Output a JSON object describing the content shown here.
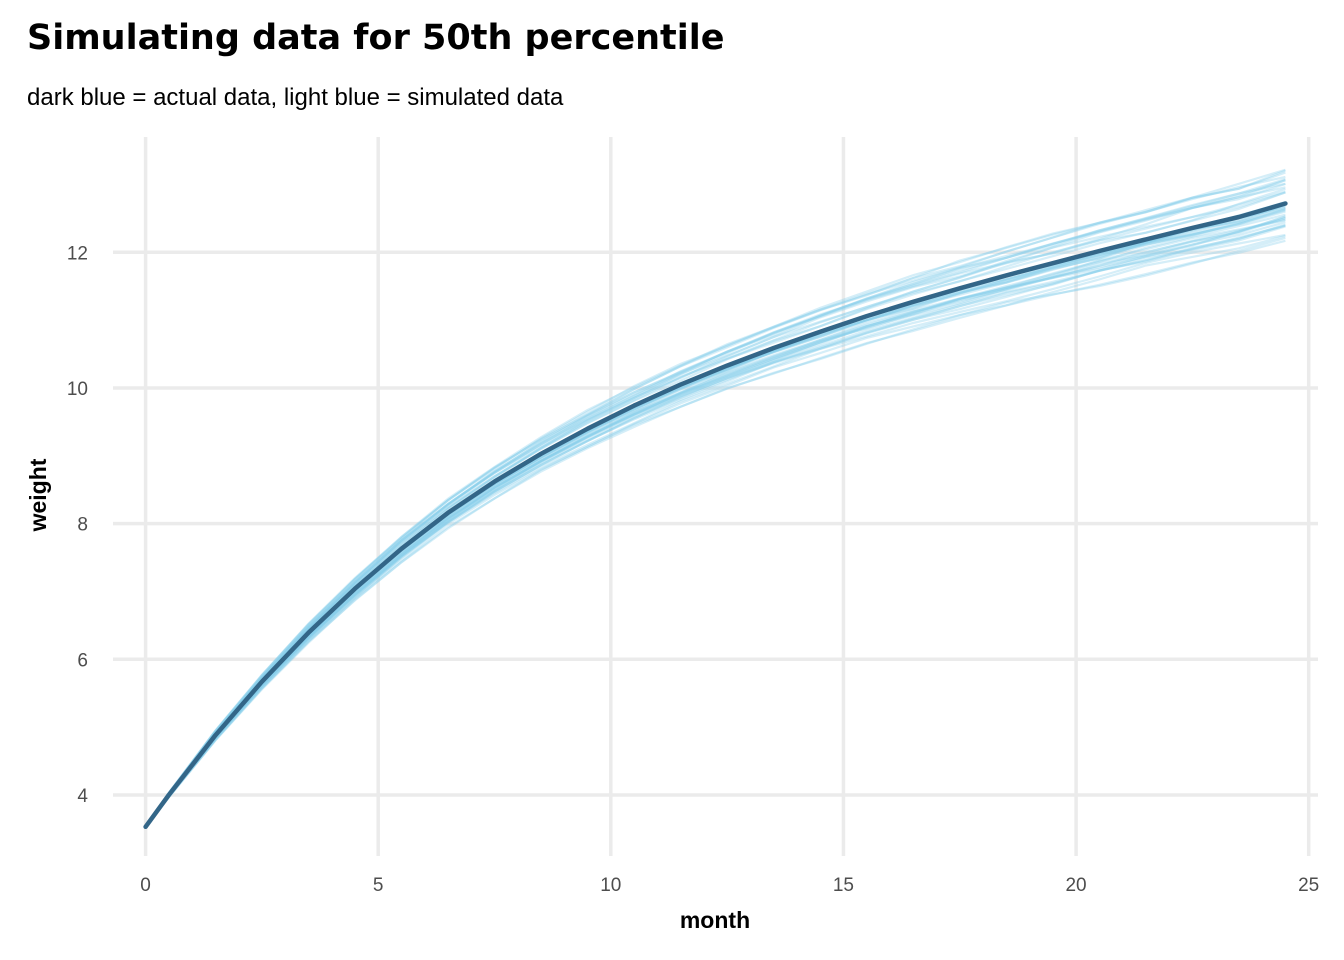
{
  "chart_data": {
    "type": "line",
    "title": "Simulating data for 50th percentile",
    "subtitle": "dark blue = actual data, light blue = simulated data",
    "xlabel": "month",
    "ylabel": "weight",
    "xlim": [
      -0.7,
      25.2
    ],
    "ylim": [
      3.1,
      13.7
    ],
    "x_ticks": [
      0,
      5,
      10,
      15,
      20,
      25
    ],
    "y_ticks": [
      4,
      6,
      8,
      10,
      12
    ],
    "grid": true,
    "colors": {
      "actual": "#336688",
      "simulated": "#87CEEB",
      "grid": "#ebebeb",
      "tick_text": "#4d4d4d"
    },
    "x": [
      0,
      0.5,
      1.5,
      2.5,
      3.5,
      4.5,
      5.5,
      6.5,
      7.5,
      8.5,
      9.5,
      10.5,
      11.5,
      12.5,
      13.5,
      14.5,
      15.5,
      16.5,
      17.5,
      18.5,
      19.5,
      20.5,
      21.5,
      22.5,
      23.5,
      24.5
    ],
    "series": [
      {
        "role": "actual",
        "values": [
          3.53,
          4.0,
          4.88,
          5.67,
          6.39,
          7.04,
          7.63,
          8.16,
          8.62,
          9.03,
          9.4,
          9.74,
          10.05,
          10.33,
          10.59,
          10.83,
          11.06,
          11.27,
          11.47,
          11.66,
          11.84,
          12.02,
          12.19,
          12.36,
          12.52,
          12.72
        ]
      }
    ],
    "simulated": {
      "count": 40,
      "spread_at_end": 0.55
    }
  }
}
